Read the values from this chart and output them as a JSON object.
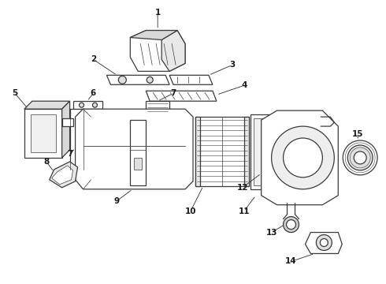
{
  "background_color": "#ffffff",
  "line_color": "#3a3a3a",
  "label_color": "#1a1a1a",
  "figure_width": 4.9,
  "figure_height": 3.6,
  "dpi": 100
}
